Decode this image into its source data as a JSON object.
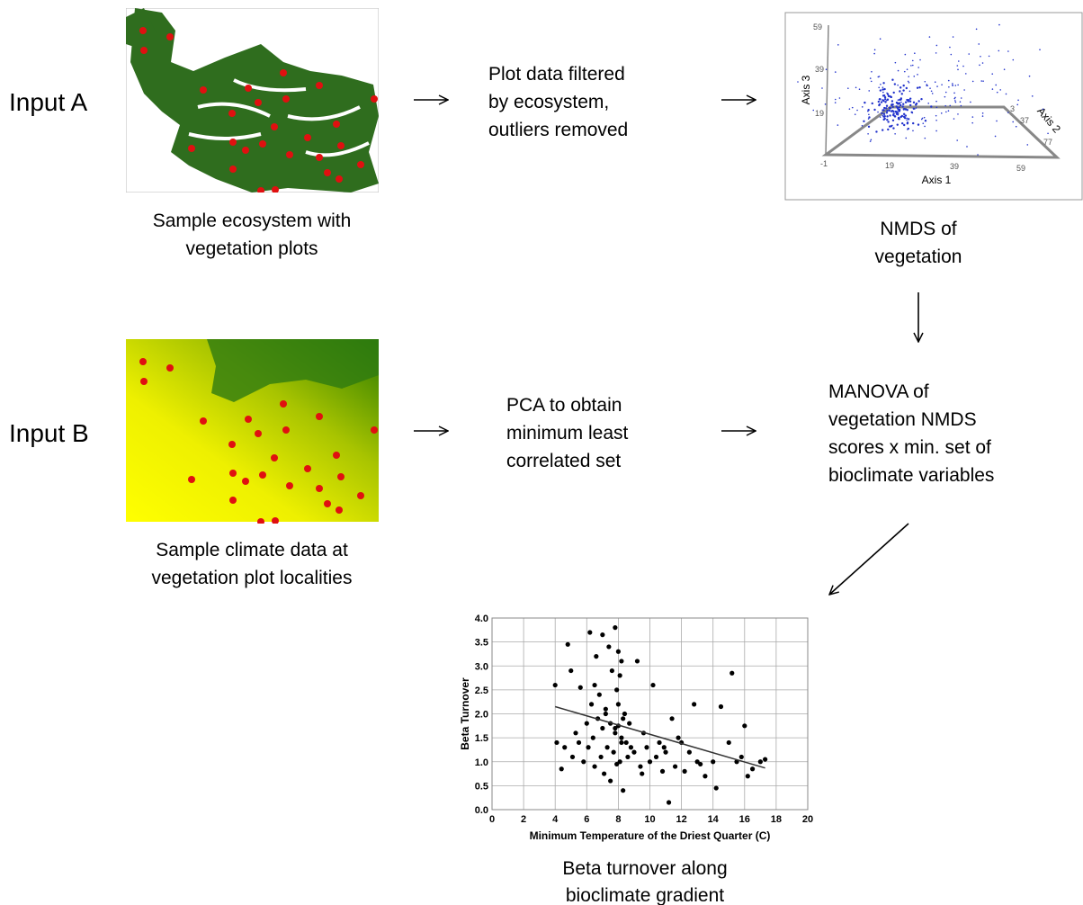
{
  "input_a": {
    "label": "Input A",
    "caption": [
      "Sample ecosystem with",
      "vegetation plots"
    ],
    "step": [
      "Plot data filtered",
      "by ecosystem,",
      "outliers removed"
    ]
  },
  "nmds": {
    "axis1": "Axis 1",
    "axis2": "Axis 2",
    "axis3": "Axis 3",
    "axis3_ticks": [
      "59",
      "39",
      "19"
    ],
    "axis1_ticks": [
      "-1",
      "19",
      "39",
      "59"
    ],
    "axis2_ticks": [
      "3",
      "37",
      "77"
    ],
    "caption": [
      "NMDS of",
      "vegetation"
    ]
  },
  "input_b": {
    "label": "Input B",
    "caption": [
      "Sample climate data at",
      "vegetation plot localities"
    ],
    "step": [
      "PCA to obtain",
      "minimum least",
      "correlated set"
    ]
  },
  "manova": {
    "text": [
      "MANOVA of",
      "vegetation NMDS",
      "scores x min. set of",
      "bioclimate variables"
    ]
  },
  "chart_data": {
    "type": "scatter",
    "xlabel": "Minimum Temperature of the Driest Quarter (C)",
    "ylabel": "Beta Turnover",
    "xlim": [
      0,
      20
    ],
    "ylim": [
      0,
      4
    ],
    "grid": true,
    "color": "#000000",
    "xticks": [
      0,
      2,
      4,
      6,
      8,
      10,
      12,
      14,
      16,
      18,
      20
    ],
    "yticks": [
      {
        "value": 0,
        "label": "0.0"
      },
      {
        "value": 0.5,
        "label": "0.5"
      },
      {
        "value": 1,
        "label": "1.0"
      },
      {
        "value": 1.5,
        "label": "1.5"
      },
      {
        "value": 2,
        "label": "2.0"
      },
      {
        "value": 2.5,
        "label": "2.5"
      },
      {
        "value": 3,
        "label": "3.0"
      },
      {
        "value": 3.5,
        "label": "3.5"
      },
      {
        "value": 4,
        "label": "4.0"
      }
    ],
    "x": [
      4,
      4.1,
      4.4,
      4.6,
      4.8,
      5,
      5.1,
      5.3,
      5.5,
      5.6,
      5.8,
      6,
      6.1,
      6.2,
      6.3,
      6.4,
      6.5,
      6.6,
      6.7,
      6.8,
      6.9,
      7,
      7,
      7.1,
      7.2,
      7.3,
      7.4,
      7.5,
      7.5,
      7.6,
      7.7,
      7.8,
      7.8,
      7.9,
      7.9,
      8,
      8,
      8,
      8.1,
      8.1,
      8.2,
      8.2,
      8.3,
      8.3,
      8.4,
      8.5,
      8.6,
      8.7,
      8.8,
      9,
      9.2,
      9.4,
      9.6,
      9.8,
      10,
      10.2,
      10.4,
      10.6,
      10.8,
      11,
      11.2,
      11.4,
      11.6,
      11.8,
      12,
      12.2,
      12.5,
      12.8,
      13,
      13.2,
      13.5,
      14,
      14.2,
      14.5,
      15,
      15.2,
      15.5,
      15.8,
      16,
      16.2,
      16.5,
      17,
      17.3,
      6.5,
      7.2,
      7.8,
      8.2,
      9.5,
      10.9
    ],
    "y": [
      2.6,
      1.4,
      0.85,
      1.3,
      3.45,
      2.9,
      1.1,
      1.6,
      1.4,
      2.55,
      1.0,
      1.8,
      1.3,
      3.7,
      2.2,
      1.5,
      0.9,
      3.2,
      1.9,
      2.4,
      1.1,
      3.65,
      1.7,
      0.75,
      2.1,
      1.3,
      3.4,
      1.8,
      0.6,
      2.9,
      1.2,
      3.8,
      1.6,
      2.5,
      0.95,
      3.3,
      1.75,
      2.2,
      1.0,
      2.8,
      1.5,
      3.1,
      1.9,
      0.4,
      2.0,
      1.4,
      1.1,
      1.8,
      1.3,
      1.2,
      3.1,
      0.9,
      1.6,
      1.3,
      1.0,
      2.6,
      1.1,
      1.4,
      0.8,
      1.2,
      0.15,
      1.9,
      0.9,
      1.5,
      1.4,
      0.8,
      1.2,
      2.2,
      1.0,
      0.95,
      0.7,
      1.0,
      0.45,
      2.15,
      1.4,
      2.85,
      1.0,
      1.1,
      1.75,
      0.7,
      0.85,
      1.0,
      1.05,
      2.6,
      2.0,
      1.7,
      1.4,
      0.75,
      1.3
    ],
    "trendline": {
      "x": [
        4,
        17.3
      ],
      "y": [
        2.15,
        0.87
      ]
    },
    "caption": [
      "Beta turnover along",
      "bioclimate gradient"
    ]
  }
}
